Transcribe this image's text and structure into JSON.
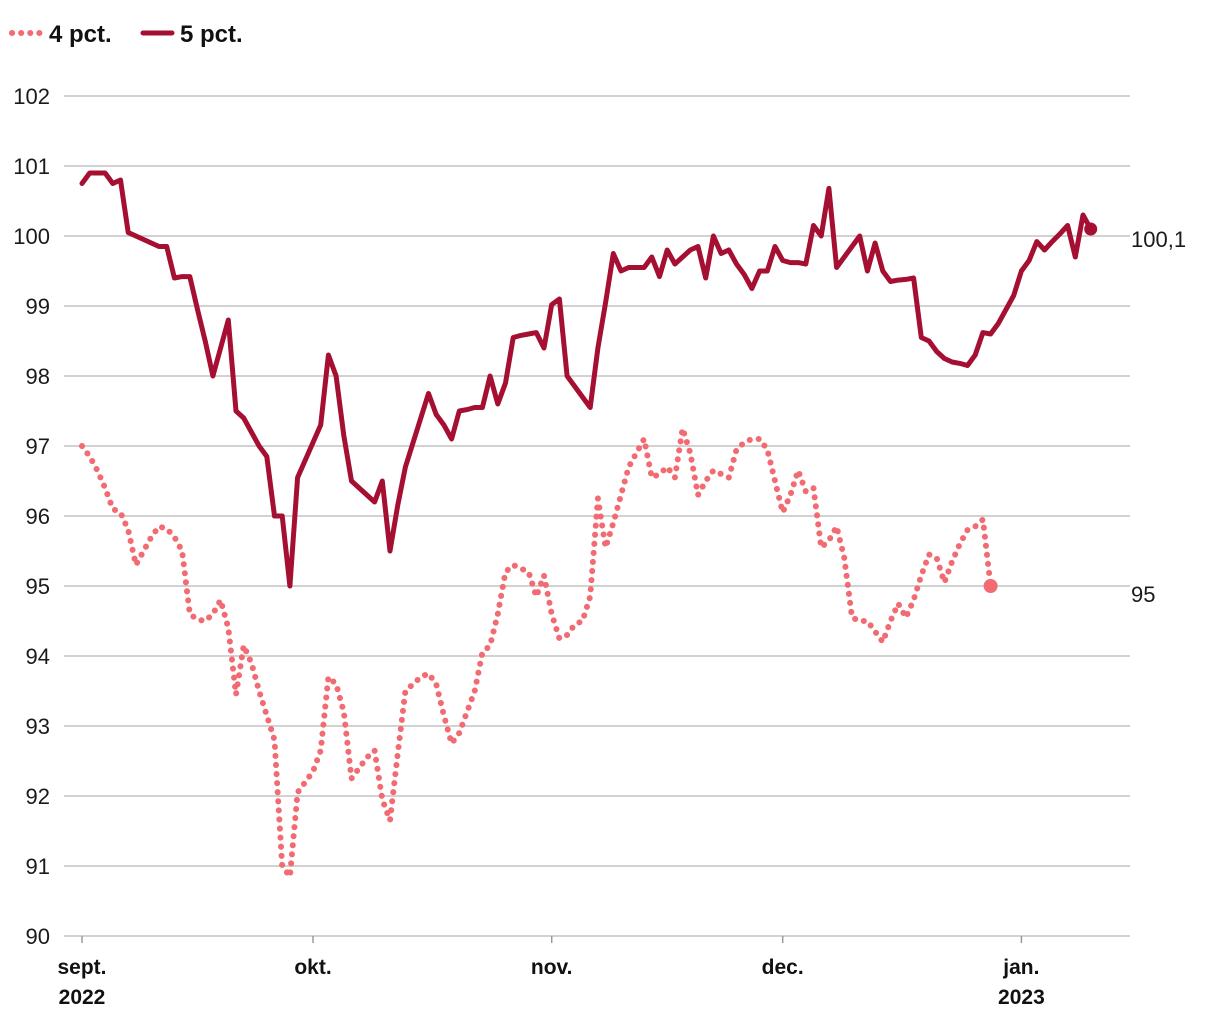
{
  "chart_data": {
    "type": "line",
    "title": "",
    "xlabel": "",
    "ylabel": "",
    "ylim": [
      90,
      102
    ],
    "yticks": [
      "90",
      "91",
      "92",
      "93",
      "94",
      "95",
      "96",
      "97",
      "98",
      "99",
      "100",
      "101",
      "102"
    ],
    "xticks": [
      {
        "label": "sept.",
        "sub": "2022",
        "date": "2022-09-01"
      },
      {
        "label": "okt.",
        "sub": "",
        "date": "2022-10-01"
      },
      {
        "label": "nov.",
        "sub": "",
        "date": "2022-11-01"
      },
      {
        "label": "dec.",
        "sub": "",
        "date": "2022-12-01"
      },
      {
        "label": "jan.",
        "sub": "2023",
        "date": "2023-01-01"
      }
    ],
    "grid": true,
    "legend": "top-left",
    "series": [
      {
        "name": "4 pct.",
        "style": "dotted",
        "color": "#f26b72",
        "end_label": "95",
        "points": [
          [
            "2022-09-01",
            97.0
          ],
          [
            "2022-09-02",
            96.85
          ],
          [
            "2022-09-03",
            96.65
          ],
          [
            "2022-09-04",
            96.4
          ],
          [
            "2022-09-05",
            96.1
          ],
          [
            "2022-09-06",
            96.05
          ],
          [
            "2022-09-07",
            95.8
          ],
          [
            "2022-09-08",
            95.3
          ],
          [
            "2022-09-09",
            95.5
          ],
          [
            "2022-09-10",
            95.7
          ],
          [
            "2022-09-11",
            95.85
          ],
          [
            "2022-09-12",
            95.82
          ],
          [
            "2022-09-13",
            95.7
          ],
          [
            "2022-09-14",
            95.5
          ],
          [
            "2022-09-15",
            94.6
          ],
          [
            "2022-09-16",
            94.52
          ],
          [
            "2022-09-17",
            94.5
          ],
          [
            "2022-09-18",
            94.6
          ],
          [
            "2022-09-19",
            94.8
          ],
          [
            "2022-09-20",
            94.4
          ],
          [
            "2022-09-21",
            93.45
          ],
          [
            "2022-09-22",
            94.15
          ],
          [
            "2022-09-23",
            93.9
          ],
          [
            "2022-09-24",
            93.5
          ],
          [
            "2022-09-25",
            93.15
          ],
          [
            "2022-09-26",
            92.8
          ],
          [
            "2022-09-27",
            91.0
          ],
          [
            "2022-09-28",
            90.85
          ],
          [
            "2022-09-29",
            92.05
          ],
          [
            "2022-09-30",
            92.2
          ],
          [
            "2022-10-01",
            92.35
          ],
          [
            "2022-10-02",
            92.65
          ],
          [
            "2022-10-03",
            93.7
          ],
          [
            "2022-10-04",
            93.6
          ],
          [
            "2022-10-05",
            93.2
          ],
          [
            "2022-10-06",
            92.25
          ],
          [
            "2022-10-07",
            92.4
          ],
          [
            "2022-10-08",
            92.55
          ],
          [
            "2022-10-09",
            92.65
          ],
          [
            "2022-10-10",
            91.95
          ],
          [
            "2022-10-11",
            91.65
          ],
          [
            "2022-10-12",
            92.6
          ],
          [
            "2022-10-13",
            93.5
          ],
          [
            "2022-10-14",
            93.6
          ],
          [
            "2022-10-15",
            93.7
          ],
          [
            "2022-10-16",
            93.75
          ],
          [
            "2022-10-17",
            93.6
          ],
          [
            "2022-10-18",
            93.15
          ],
          [
            "2022-10-19",
            92.75
          ],
          [
            "2022-10-20",
            92.9
          ],
          [
            "2022-10-21",
            93.2
          ],
          [
            "2022-10-22",
            93.5
          ],
          [
            "2022-10-23",
            94.05
          ],
          [
            "2022-10-24",
            94.15
          ],
          [
            "2022-10-25",
            94.6
          ],
          [
            "2022-10-26",
            95.2
          ],
          [
            "2022-10-27",
            95.3
          ],
          [
            "2022-10-28",
            95.25
          ],
          [
            "2022-10-29",
            95.2
          ],
          [
            "2022-10-30",
            94.85
          ],
          [
            "2022-10-31",
            95.15
          ],
          [
            "2022-11-01",
            94.6
          ],
          [
            "2022-11-02",
            94.25
          ],
          [
            "2022-11-03",
            94.3
          ],
          [
            "2022-11-04",
            94.45
          ],
          [
            "2022-11-05",
            94.5
          ],
          [
            "2022-11-06",
            94.85
          ],
          [
            "2022-11-07",
            96.25
          ],
          [
            "2022-11-08",
            95.55
          ],
          [
            "2022-11-09",
            95.9
          ],
          [
            "2022-11-10",
            96.3
          ],
          [
            "2022-11-11",
            96.7
          ],
          [
            "2022-11-12",
            96.9
          ],
          [
            "2022-11-13",
            97.1
          ],
          [
            "2022-11-14",
            96.55
          ],
          [
            "2022-11-15",
            96.6
          ],
          [
            "2022-11-16",
            96.7
          ],
          [
            "2022-11-17",
            96.55
          ],
          [
            "2022-11-18",
            97.25
          ],
          [
            "2022-11-19",
            96.9
          ],
          [
            "2022-11-20",
            96.3
          ],
          [
            "2022-11-21",
            96.5
          ],
          [
            "2022-11-22",
            96.65
          ],
          [
            "2022-11-23",
            96.6
          ],
          [
            "2022-11-24",
            96.55
          ],
          [
            "2022-11-25",
            96.95
          ],
          [
            "2022-11-26",
            97.05
          ],
          [
            "2022-11-27",
            97.1
          ],
          [
            "2022-11-28",
            97.1
          ],
          [
            "2022-11-29",
            96.95
          ],
          [
            "2022-11-30",
            96.5
          ],
          [
            "2022-12-01",
            96.05
          ],
          [
            "2022-12-02",
            96.3
          ],
          [
            "2022-12-03",
            96.65
          ],
          [
            "2022-12-04",
            96.35
          ],
          [
            "2022-12-05",
            96.4
          ],
          [
            "2022-12-06",
            95.55
          ],
          [
            "2022-12-07",
            95.65
          ],
          [
            "2022-12-08",
            95.85
          ],
          [
            "2022-12-09",
            95.4
          ],
          [
            "2022-12-10",
            94.55
          ],
          [
            "2022-12-11",
            94.5
          ],
          [
            "2022-12-12",
            94.5
          ],
          [
            "2022-12-13",
            94.35
          ],
          [
            "2022-12-14",
            94.2
          ],
          [
            "2022-12-15",
            94.5
          ],
          [
            "2022-12-16",
            94.75
          ],
          [
            "2022-12-17",
            94.55
          ],
          [
            "2022-12-18",
            94.8
          ],
          [
            "2022-12-19",
            95.15
          ],
          [
            "2022-12-20",
            95.45
          ],
          [
            "2022-12-21",
            95.4
          ],
          [
            "2022-12-22",
            95.05
          ],
          [
            "2022-12-23",
            95.35
          ],
          [
            "2022-12-24",
            95.6
          ],
          [
            "2022-12-25",
            95.8
          ],
          [
            "2022-12-26",
            95.85
          ],
          [
            "2022-12-27",
            95.95
          ],
          [
            "2022-12-28",
            95.0
          ]
        ]
      },
      {
        "name": "5 pct.",
        "style": "solid",
        "color": "#a50f32",
        "end_label": "100,1",
        "points": [
          [
            "2022-09-01",
            100.75
          ],
          [
            "2022-09-02",
            100.9
          ],
          [
            "2022-09-03",
            100.9
          ],
          [
            "2022-09-04",
            100.9
          ],
          [
            "2022-09-05",
            100.75
          ],
          [
            "2022-09-06",
            100.8
          ],
          [
            "2022-09-07",
            100.05
          ],
          [
            "2022-09-08",
            100.0
          ],
          [
            "2022-09-09",
            99.95
          ],
          [
            "2022-09-10",
            99.9
          ],
          [
            "2022-09-11",
            99.85
          ],
          [
            "2022-09-12",
            99.85
          ],
          [
            "2022-09-13",
            99.4
          ],
          [
            "2022-09-14",
            99.42
          ],
          [
            "2022-09-15",
            99.42
          ],
          [
            "2022-09-16",
            98.95
          ],
          [
            "2022-09-17",
            98.5
          ],
          [
            "2022-09-18",
            98.0
          ],
          [
            "2022-09-19",
            98.4
          ],
          [
            "2022-09-20",
            98.8
          ],
          [
            "2022-09-21",
            97.5
          ],
          [
            "2022-09-22",
            97.4
          ],
          [
            "2022-09-23",
            97.2
          ],
          [
            "2022-09-24",
            97.0
          ],
          [
            "2022-09-25",
            96.85
          ],
          [
            "2022-09-26",
            96.0
          ],
          [
            "2022-09-27",
            96.0
          ],
          [
            "2022-09-28",
            95.0
          ],
          [
            "2022-09-29",
            96.55
          ],
          [
            "2022-09-30",
            96.8
          ],
          [
            "2022-10-01",
            97.05
          ],
          [
            "2022-10-02",
            97.3
          ],
          [
            "2022-10-03",
            98.3
          ],
          [
            "2022-10-04",
            98.0
          ],
          [
            "2022-10-05",
            97.15
          ],
          [
            "2022-10-06",
            96.5
          ],
          [
            "2022-10-07",
            96.4
          ],
          [
            "2022-10-08",
            96.3
          ],
          [
            "2022-10-09",
            96.2
          ],
          [
            "2022-10-10",
            96.5
          ],
          [
            "2022-10-11",
            95.5
          ],
          [
            "2022-10-12",
            96.15
          ],
          [
            "2022-10-13",
            96.7
          ],
          [
            "2022-10-14",
            97.05
          ],
          [
            "2022-10-15",
            97.4
          ],
          [
            "2022-10-16",
            97.75
          ],
          [
            "2022-10-17",
            97.45
          ],
          [
            "2022-10-18",
            97.3
          ],
          [
            "2022-10-19",
            97.1
          ],
          [
            "2022-10-20",
            97.5
          ],
          [
            "2022-10-21",
            97.52
          ],
          [
            "2022-10-22",
            97.55
          ],
          [
            "2022-10-23",
            97.55
          ],
          [
            "2022-10-24",
            98.0
          ],
          [
            "2022-10-25",
            97.6
          ],
          [
            "2022-10-26",
            97.9
          ],
          [
            "2022-10-27",
            98.55
          ],
          [
            "2022-10-28",
            98.58
          ],
          [
            "2022-10-29",
            98.6
          ],
          [
            "2022-10-30",
            98.62
          ],
          [
            "2022-10-31",
            98.4
          ],
          [
            "2022-11-01",
            99.02
          ],
          [
            "2022-11-02",
            99.1
          ],
          [
            "2022-11-03",
            98.0
          ],
          [
            "2022-11-04",
            97.85
          ],
          [
            "2022-11-05",
            97.7
          ],
          [
            "2022-11-06",
            97.55
          ],
          [
            "2022-11-07",
            98.4
          ],
          [
            "2022-11-08",
            99.05
          ],
          [
            "2022-11-09",
            99.75
          ],
          [
            "2022-11-10",
            99.5
          ],
          [
            "2022-11-11",
            99.55
          ],
          [
            "2022-11-12",
            99.55
          ],
          [
            "2022-11-13",
            99.55
          ],
          [
            "2022-11-14",
            99.7
          ],
          [
            "2022-11-15",
            99.42
          ],
          [
            "2022-11-16",
            99.8
          ],
          [
            "2022-11-17",
            99.6
          ],
          [
            "2022-11-18",
            99.7
          ],
          [
            "2022-11-19",
            99.8
          ],
          [
            "2022-11-20",
            99.85
          ],
          [
            "2022-11-21",
            99.4
          ],
          [
            "2022-11-22",
            100.0
          ],
          [
            "2022-11-23",
            99.75
          ],
          [
            "2022-11-24",
            99.8
          ],
          [
            "2022-11-25",
            99.6
          ],
          [
            "2022-11-26",
            99.45
          ],
          [
            "2022-11-27",
            99.25
          ],
          [
            "2022-11-28",
            99.5
          ],
          [
            "2022-11-29",
            99.5
          ],
          [
            "2022-11-30",
            99.85
          ],
          [
            "2022-12-01",
            99.65
          ],
          [
            "2022-12-02",
            99.62
          ],
          [
            "2022-12-03",
            99.62
          ],
          [
            "2022-12-04",
            99.6
          ],
          [
            "2022-12-05",
            100.15
          ],
          [
            "2022-12-06",
            100.0
          ],
          [
            "2022-12-07",
            100.68
          ],
          [
            "2022-12-08",
            99.55
          ],
          [
            "2022-12-09",
            99.7
          ],
          [
            "2022-12-10",
            99.85
          ],
          [
            "2022-12-11",
            100.0
          ],
          [
            "2022-12-12",
            99.5
          ],
          [
            "2022-12-13",
            99.9
          ],
          [
            "2022-12-14",
            99.5
          ],
          [
            "2022-12-15",
            99.35
          ],
          [
            "2022-12-16",
            99.37
          ],
          [
            "2022-12-17",
            99.38
          ],
          [
            "2022-12-18",
            99.4
          ],
          [
            "2022-12-19",
            98.55
          ],
          [
            "2022-12-20",
            98.5
          ],
          [
            "2022-12-21",
            98.35
          ],
          [
            "2022-12-22",
            98.25
          ],
          [
            "2022-12-23",
            98.2
          ],
          [
            "2022-12-24",
            98.18
          ],
          [
            "2022-12-25",
            98.15
          ],
          [
            "2022-12-26",
            98.3
          ],
          [
            "2022-12-27",
            98.62
          ],
          [
            "2022-12-28",
            98.6
          ],
          [
            "2022-12-29",
            98.75
          ],
          [
            "2022-12-30",
            98.95
          ],
          [
            "2022-12-31",
            99.15
          ],
          [
            "2023-01-01",
            99.5
          ],
          [
            "2023-01-02",
            99.65
          ],
          [
            "2023-01-03",
            99.92
          ],
          [
            "2023-01-04",
            99.8
          ],
          [
            "2023-01-05",
            99.92
          ],
          [
            "2023-01-06",
            100.03
          ],
          [
            "2023-01-07",
            100.15
          ],
          [
            "2023-01-08",
            99.7
          ],
          [
            "2023-01-09",
            100.3
          ],
          [
            "2023-01-10",
            100.1
          ]
        ]
      }
    ]
  }
}
